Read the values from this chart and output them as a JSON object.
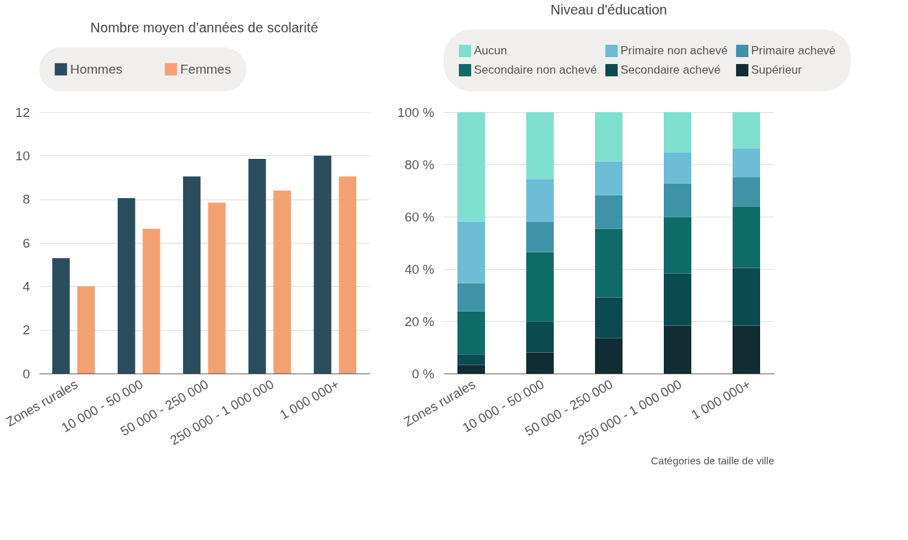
{
  "chart_data": [
    {
      "type": "bar",
      "title": "Nombre moyen d’années de scolarité",
      "categories": [
        "Zones rurales",
        "10 000 - 50 000",
        "50 000 - 250 000",
        "250 000 - 1 000 000",
        "1 000 000+"
      ],
      "series": [
        {
          "name": "Hommes",
          "color": "#2a4d5e",
          "values": [
            5.3,
            8.05,
            9.05,
            9.85,
            10.0
          ]
        },
        {
          "name": "Femmes",
          "color": "#f4a172",
          "values": [
            4.0,
            6.65,
            7.85,
            8.4,
            9.05
          ]
        }
      ],
      "ylim": [
        0,
        12
      ],
      "yticks": [
        0,
        2,
        4,
        6,
        8,
        10,
        12
      ],
      "grid": "y",
      "legend": "top"
    },
    {
      "type": "bar",
      "title": "Niveau d'éducation",
      "stacked": true,
      "xlabel": "Catégories de taille de ville",
      "categories": [
        "Zones rurales",
        "10 000 - 50 000",
        "50 000 - 250 000",
        "250 000 - 1 000 000",
        "1 000 000+"
      ],
      "series": [
        {
          "name": "Supérieur",
          "color": "#112c33",
          "values": [
            3.3,
            8.0,
            13.5,
            18.3,
            18.3
          ]
        },
        {
          "name": "Secondaire achevé",
          "color": "#0b4a50",
          "values": [
            4.0,
            11.8,
            15.6,
            20.0,
            22.1
          ]
        },
        {
          "name": "Secondaire non achevé",
          "color": "#0f6b68",
          "values": [
            16.5,
            26.6,
            26.3,
            21.6,
            23.5
          ]
        },
        {
          "name": "Primaire achevé",
          "color": "#3f93a6",
          "values": [
            10.8,
            11.7,
            12.8,
            12.8,
            11.3
          ]
        },
        {
          "name": "Primaire non achevé",
          "color": "#6dbcd6",
          "values": [
            23.5,
            16.3,
            13.0,
            11.8,
            11.0
          ]
        },
        {
          "name": "Aucun",
          "color": "#7fdfcf",
          "values": [
            41.9,
            25.6,
            18.8,
            15.5,
            13.8
          ]
        }
      ],
      "ylim": [
        0,
        100
      ],
      "yticks": [
        {
          "value": 0,
          "label": "0 %"
        },
        {
          "value": 20,
          "label": "20 %"
        },
        {
          "value": 40,
          "label": "40 %"
        },
        {
          "value": 60,
          "label": "60 %"
        },
        {
          "value": 80,
          "label": "80 %"
        },
        {
          "value": 100,
          "label": "100 %"
        }
      ],
      "grid": "y",
      "legend": "top"
    }
  ]
}
